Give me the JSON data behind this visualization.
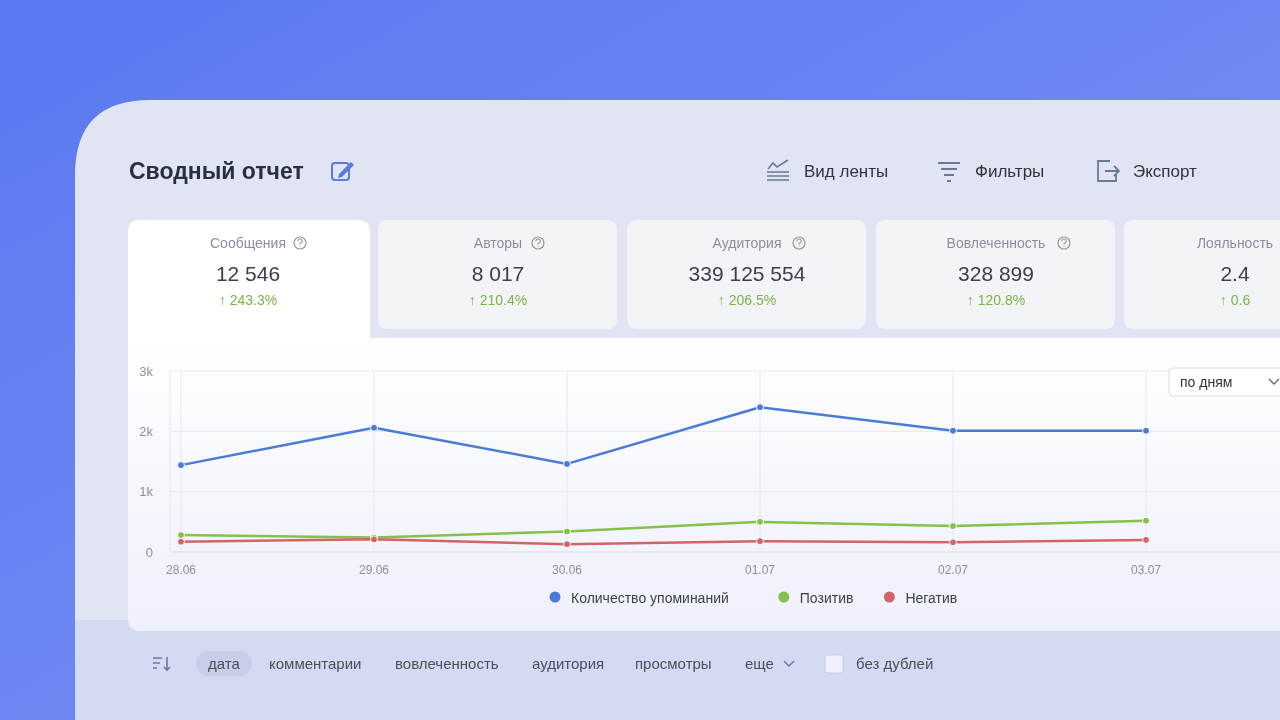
{
  "chart_data": {
    "type": "line",
    "title": "Сводный отчет",
    "categories": [
      "28.06",
      "29.06",
      "30.06",
      "01.07",
      "02.07",
      "03.07"
    ],
    "series": [
      {
        "name": "Количество упоминаний",
        "color": "#4a7bd8",
        "values": [
          1440,
          2060,
          1460,
          2400,
          2010,
          2010
        ]
      },
      {
        "name": "Позитив",
        "color": "#86c04a",
        "values": [
          280,
          240,
          340,
          500,
          430,
          520
        ]
      },
      {
        "name": "Негатив",
        "color": "#d06468",
        "values": [
          170,
          210,
          130,
          180,
          160,
          200
        ]
      }
    ],
    "ylim": [
      0,
      3000
    ],
    "yticks": [
      {
        "value": 0,
        "label": "0"
      },
      {
        "value": 1000,
        "label": "1k"
      },
      {
        "value": 2000,
        "label": "2k"
      },
      {
        "value": 3000,
        "label": "3k"
      }
    ],
    "grid": true,
    "legend": "bottom",
    "marker": "circle",
    "line_style": "solid",
    "annotations": [
      "Сообщения",
      "12 546",
      "↑ 243.3%",
      "Авторы",
      "8 017",
      "↑ 210.4%",
      "Аудитория",
      "339 125 554",
      "↑ 206.5%",
      "Вовлеченность",
      "328 899",
      "↑ 120.8%",
      "Лояльность",
      "2.4",
      "↑ 0.6",
      "Вид ленты",
      "Фильтры",
      "Экспорт",
      "по дням",
      "дата",
      "комментарии",
      "вовлеченность",
      "аудитория",
      "просмотры",
      "еще",
      "без дублей"
    ]
  }
}
